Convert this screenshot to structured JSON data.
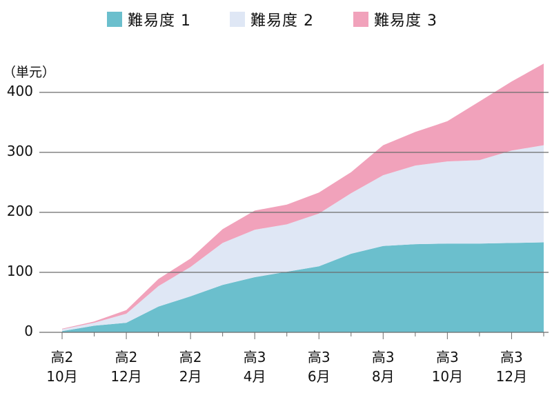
{
  "chart_data": {
    "type": "area",
    "stacked": true,
    "title": "",
    "xlabel": "",
    "ylabel": "（単元）",
    "ylim": [
      0,
      450
    ],
    "yticks": [
      0,
      100,
      200,
      300,
      400
    ],
    "grid": true,
    "legend_position": "top",
    "x": [
      "高2 10月",
      "高2 11月",
      "高2 12月",
      "高2 1月",
      "高2 2月",
      "高2 3月",
      "高3 4月",
      "高3 5月",
      "高3 6月",
      "高3 7月",
      "高3 8月",
      "高3 9月",
      "高3 10月",
      "高3 11月",
      "高3 12月",
      "高3 1月"
    ],
    "xtick_labels": [
      {
        "line1": "高2",
        "line2": "10月"
      },
      {
        "line1": "高2",
        "line2": "12月"
      },
      {
        "line1": "高2",
        "line2": "2月"
      },
      {
        "line1": "高3",
        "line2": "4月"
      },
      {
        "line1": "高3",
        "line2": "6月"
      },
      {
        "line1": "高3",
        "line2": "8月"
      },
      {
        "line1": "高3",
        "line2": "10月"
      },
      {
        "line1": "高3",
        "line2": "12月"
      }
    ],
    "series": [
      {
        "name": "難易度 1",
        "color": "#6bbfcd",
        "values": [
          2,
          11,
          16,
          43,
          60,
          79,
          92,
          101,
          110,
          131,
          144,
          147,
          148,
          148,
          149,
          150
        ]
      },
      {
        "name": "難易度 2",
        "color": "#dfe7f5",
        "values": [
          3,
          5,
          15,
          34,
          49,
          70,
          79,
          79,
          88,
          101,
          118,
          131,
          137,
          139,
          154,
          162
        ]
      },
      {
        "name": "難易度 3",
        "color": "#f1a2bb",
        "values": [
          1,
          2,
          6,
          12,
          14,
          23,
          32,
          33,
          35,
          35,
          50,
          56,
          67,
          98,
          115,
          136
        ]
      }
    ]
  },
  "legend": [
    {
      "label": "難易度 1",
      "color": "#6bbfcd"
    },
    {
      "label": "難易度 2",
      "color": "#dfe7f5"
    },
    {
      "label": "難易度 3",
      "color": "#f1a2bb"
    }
  ],
  "axis": {
    "unit_label": "（単元）",
    "y_labels": [
      "400",
      "300",
      "200",
      "100",
      "0"
    ]
  }
}
